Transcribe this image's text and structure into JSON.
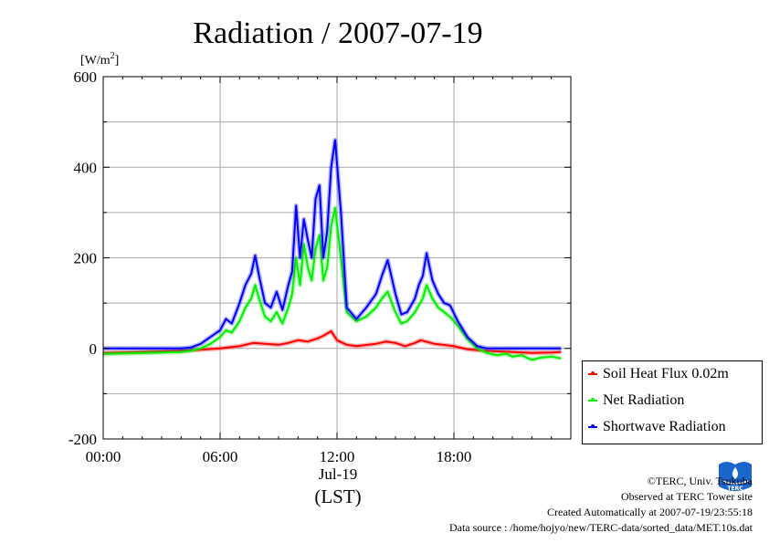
{
  "colors": {
    "soil": "#ff0000",
    "net": "#00ee00",
    "shortwave": "#0000ff",
    "grid": "#aaaaaa"
  },
  "chart_data": {
    "type": "line",
    "title": "Radiation / 2007-07-19",
    "ylabel_unit": "[W/m",
    "ylabel_sup": "2",
    "ylabel_close": "]",
    "xlabel_date": "Jul-19",
    "xlabel": "(LST)",
    "xlim": [
      0,
      24
    ],
    "ylim": [
      -200,
      600
    ],
    "xticks": [
      0,
      6,
      12,
      18
    ],
    "xtick_labels": [
      "00:00",
      "06:00",
      "12:00",
      "18:00"
    ],
    "yticks": [
      -200,
      0,
      200,
      400,
      600
    ],
    "ytick_labels": [
      "-200",
      "0",
      "200",
      "400",
      "600"
    ],
    "grid": true,
    "legend_position": "right-bottom",
    "series": [
      {
        "name": "Soil Heat Flux 0.02m",
        "color_key": "soil",
        "x": [
          0,
          2,
          4,
          5,
          6,
          7,
          7.7,
          8.3,
          9,
          9.5,
          10,
          10.5,
          11,
          11.3,
          11.7,
          12,
          12.5,
          13,
          14,
          14.5,
          15,
          15.5,
          16,
          16.3,
          17,
          18,
          18.7,
          19.5,
          21,
          22,
          23,
          23.5
        ],
        "values": [
          -10,
          -8,
          -5,
          -3,
          0,
          5,
          12,
          10,
          8,
          12,
          18,
          15,
          22,
          28,
          38,
          18,
          8,
          5,
          10,
          15,
          12,
          5,
          12,
          18,
          10,
          5,
          -2,
          -5,
          -8,
          -10,
          -9,
          -8
        ]
      },
      {
        "name": "Net Radiation",
        "color_key": "net",
        "x": [
          0,
          2,
          4,
          4.5,
          5,
          5.5,
          6,
          6.3,
          6.6,
          7,
          7.3,
          7.6,
          7.8,
          8,
          8.3,
          8.6,
          8.9,
          9.2,
          9.5,
          9.7,
          9.9,
          10.1,
          10.3,
          10.5,
          10.7,
          10.9,
          11.1,
          11.3,
          11.5,
          11.7,
          11.9,
          12.2,
          12.5,
          13,
          13.5,
          14,
          14.3,
          14.6,
          15,
          15.3,
          15.6,
          16,
          16.2,
          16.4,
          16.6,
          16.9,
          17.2,
          17.5,
          17.8,
          18.2,
          18.7,
          19.2,
          19.7,
          20.2,
          20.7,
          21,
          21.5,
          21.8,
          22,
          22.5,
          23,
          23.5
        ],
        "values": [
          -12,
          -10,
          -8,
          -5,
          0,
          10,
          25,
          40,
          35,
          60,
          90,
          110,
          140,
          110,
          70,
          60,
          80,
          55,
          90,
          120,
          200,
          140,
          230,
          180,
          150,
          220,
          250,
          150,
          180,
          270,
          310,
          200,
          80,
          60,
          70,
          90,
          110,
          125,
          80,
          55,
          60,
          80,
          95,
          110,
          140,
          110,
          90,
          80,
          70,
          50,
          20,
          0,
          -10,
          -15,
          -12,
          -18,
          -15,
          -22,
          -25,
          -20,
          -18,
          -22
        ]
      },
      {
        "name": "Shortwave Radiation",
        "color_key": "shortwave",
        "x": [
          0,
          2,
          4,
          4.5,
          5,
          5.5,
          6,
          6.3,
          6.6,
          7,
          7.3,
          7.6,
          7.8,
          8,
          8.3,
          8.6,
          8.9,
          9.2,
          9.5,
          9.7,
          9.9,
          10.1,
          10.3,
          10.5,
          10.7,
          10.9,
          11.1,
          11.3,
          11.5,
          11.7,
          11.9,
          12.2,
          12.5,
          13,
          13.5,
          14,
          14.3,
          14.6,
          15,
          15.3,
          15.6,
          16,
          16.2,
          16.4,
          16.6,
          16.9,
          17.2,
          17.5,
          17.8,
          18.2,
          18.7,
          19.2,
          19.7,
          20.2,
          21,
          22,
          23,
          23.5
        ],
        "values": [
          0,
          0,
          0,
          2,
          10,
          25,
          40,
          65,
          55,
          100,
          140,
          165,
          205,
          160,
          100,
          90,
          125,
          85,
          140,
          170,
          315,
          200,
          285,
          240,
          200,
          330,
          360,
          200,
          260,
          400,
          460,
          300,
          90,
          65,
          90,
          120,
          160,
          195,
          120,
          75,
          80,
          110,
          140,
          160,
          210,
          150,
          120,
          100,
          95,
          60,
          25,
          5,
          0,
          0,
          0,
          0,
          0,
          0
        ]
      }
    ]
  },
  "credits": {
    "copyright": "©TERC, Univ. Tsukuba",
    "observed": "Observed at TERC Tower site",
    "created": "Created Automatically at 2007-07-19/23:55:18",
    "source": "Data source : /home/hojyo/new/TERC-data/sorted_data/MET.10s.dat",
    "logo_text": "TERC"
  }
}
